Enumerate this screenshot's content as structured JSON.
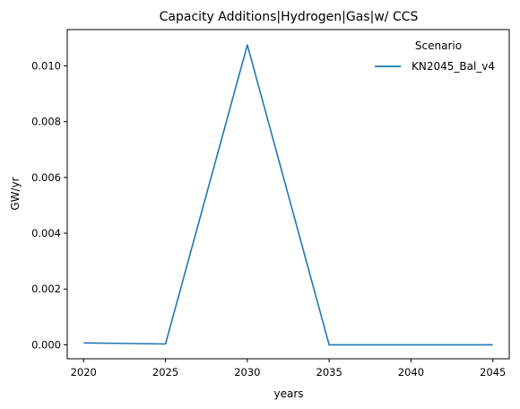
{
  "chart_data": {
    "type": "line",
    "title": "Capacity Additions|Hydrogen|Gas|w/ CCS",
    "xlabel": "years",
    "ylabel": "GW/yr",
    "x": [
      2020,
      2025,
      2030,
      2035,
      2040,
      2045
    ],
    "xticks": [
      "2020",
      "2025",
      "2030",
      "2035",
      "2040",
      "2045"
    ],
    "yticks": [
      "0.000",
      "0.002",
      "0.004",
      "0.006",
      "0.008",
      "0.010"
    ],
    "ytick_values": [
      0,
      0.002,
      0.004,
      0.006,
      0.008,
      0.01
    ],
    "xlim": [
      2019,
      2046
    ],
    "ylim": [
      -0.0005,
      0.0113
    ],
    "grid": false,
    "legend": {
      "title": "Scenario",
      "placement": "top-right"
    },
    "series": [
      {
        "name": "KN2045_Bal_v4",
        "color": "#1f77b4",
        "values": [
          7e-05,
          3e-05,
          0.01075,
          0.0,
          0.0,
          0.0
        ]
      }
    ]
  }
}
